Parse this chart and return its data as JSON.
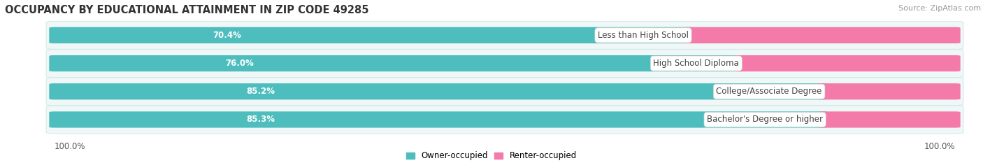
{
  "title": "OCCUPANCY BY EDUCATIONAL ATTAINMENT IN ZIP CODE 49285",
  "source": "Source: ZipAtlas.com",
  "categories": [
    "Less than High School",
    "High School Diploma",
    "College/Associate Degree",
    "Bachelor's Degree or higher"
  ],
  "owner_pct": [
    70.4,
    76.0,
    85.2,
    85.3
  ],
  "renter_pct": [
    29.6,
    24.0,
    14.8,
    14.7
  ],
  "owner_color": "#4dbdbd",
  "renter_color": "#f47aaa",
  "row_bg_color": "#f0f7f7",
  "row_border_color": "#d0e8e8",
  "title_fontsize": 10.5,
  "source_fontsize": 8,
  "label_fontsize": 8.5,
  "pct_fontsize": 8.5,
  "legend_fontsize": 8.5,
  "axis_label_left": "100.0%",
  "axis_label_right": "100.0%",
  "background_color": "#ffffff"
}
